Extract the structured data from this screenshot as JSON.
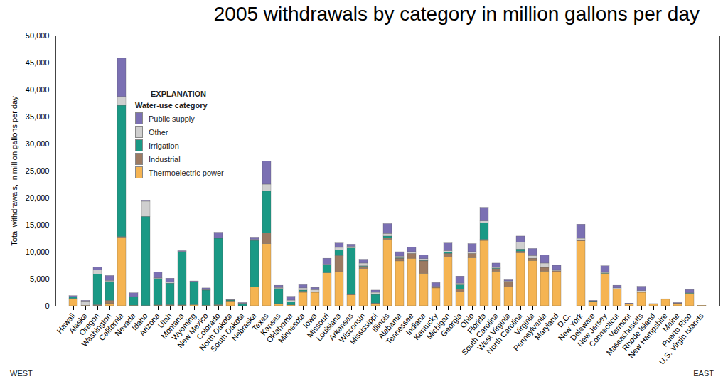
{
  "chart_data": {
    "type": "bar",
    "title": "2005 withdrawals by category in million gallons per day",
    "y_label": "Total withdrawals, in million gallons per day",
    "legend_title": "EXPLANATION",
    "legend_subtitle": "Water-use category",
    "annotations": [
      "WEST",
      "EAST"
    ],
    "stacked": true,
    "legend": "upper left",
    "grid": false,
    "ylim": [
      0,
      50000
    ],
    "yticks": [
      0,
      {
        "value": 5000,
        "label": "5,000"
      },
      {
        "value": 10000,
        "label": "10,000"
      },
      {
        "value": 15000,
        "label": "15,000"
      },
      {
        "value": 20000,
        "label": "20,000"
      },
      {
        "value": 25000,
        "label": "25,000"
      },
      {
        "value": 30000,
        "label": "30,000"
      },
      {
        "value": 35000,
        "label": "35,000"
      },
      {
        "value": 40000,
        "label": "40,000"
      },
      {
        "value": 45000,
        "label": "45,000"
      },
      {
        "value": 50000,
        "label": "50,000"
      }
    ],
    "categories": [
      "Hawaii",
      "Alaska",
      "Oregon",
      "Washington",
      "California",
      "Nevada",
      "Idaho",
      "Arizona",
      "Utah",
      "Montana",
      "Wyoming",
      "New Mexico",
      "Colorado",
      "North Dakota",
      "South Dakota",
      "Nebraska",
      "Texas",
      "Kansas",
      "Oklahoma",
      "Minnesota",
      "Iowa",
      "Missouri",
      "Louisiana",
      "Arkansas",
      "Wisconsin",
      "Mississippi",
      "Illinois",
      "Alabama",
      "Tennessee",
      "Indiana",
      "Kentucky",
      "Michigan",
      "Georgia",
      "Ohio",
      "Florida",
      "South Carolina",
      "West Virginia",
      "North Carolina",
      "Virginia",
      "Pennsylvania",
      "Maryland",
      "D.C.",
      "New York",
      "Delaware",
      "New Jersey",
      "Connecticut",
      "Vermont",
      "Massachusetts",
      "Rhode Island",
      "New Hampshire",
      "Maine",
      "Puerto Rico",
      "U.S. Virgin Islands"
    ],
    "series": [
      {
        "name": "Thermoelectric power",
        "color": "#f5b452",
        "values": [
          1300,
          100,
          50,
          400,
          12700,
          100,
          0,
          100,
          100,
          100,
          200,
          100,
          100,
          900,
          0,
          3500,
          11500,
          400,
          150,
          2500,
          2500,
          6100,
          6300,
          2000,
          6900,
          300,
          12300,
          8300,
          8800,
          6000,
          3300,
          9000,
          2600,
          8900,
          12100,
          6400,
          3500,
          9800,
          8400,
          6400,
          6300,
          0,
          12000,
          800,
          6000,
          3100,
          400,
          2500,
          300,
          1200,
          300,
          2300,
          100
        ]
      },
      {
        "name": "Industrial",
        "color": "#9c7a62",
        "values": [
          50,
          0,
          150,
          600,
          100,
          0,
          50,
          50,
          100,
          50,
          0,
          0,
          100,
          0,
          0,
          0,
          2000,
          0,
          0,
          200,
          100,
          0,
          3000,
          100,
          400,
          200,
          300,
          500,
          900,
          2300,
          200,
          700,
          500,
          800,
          200,
          500,
          1000,
          300,
          400,
          700,
          200,
          0,
          200,
          0,
          0,
          0,
          0,
          0,
          0,
          0,
          200,
          0,
          0
        ]
      },
      {
        "name": "Irrigation",
        "color": "#1a9985",
        "values": [
          250,
          0,
          5700,
          3500,
          24300,
          1500,
          16500,
          4900,
          4000,
          9800,
          4200,
          2800,
          12300,
          150,
          400,
          8600,
          7700,
          2800,
          600,
          200,
          0,
          1500,
          1000,
          8600,
          100,
          1600,
          300,
          100,
          0,
          100,
          0,
          200,
          800,
          0,
          3000,
          100,
          0,
          400,
          0,
          0,
          0,
          0,
          0,
          100,
          100,
          0,
          0,
          100,
          0,
          0,
          0,
          100,
          0
        ]
      },
      {
        "name": "Other",
        "color": "#cfcfcf",
        "values": [
          20,
          800,
          700,
          200,
          1600,
          100,
          2800,
          100,
          200,
          100,
          100,
          100,
          100,
          100,
          100,
          200,
          1300,
          200,
          300,
          400,
          400,
          100,
          500,
          300,
          500,
          400,
          500,
          300,
          300,
          300,
          100,
          300,
          300,
          300,
          400,
          200,
          100,
          1300,
          500,
          800,
          200,
          0,
          300,
          0,
          200,
          200,
          0,
          200,
          0,
          0,
          0,
          0,
          0
        ]
      },
      {
        "name": "Public supply",
        "color": "#7b70b3",
        "values": [
          250,
          100,
          600,
          900,
          7100,
          700,
          200,
          1100,
          700,
          150,
          100,
          300,
          1000,
          100,
          100,
          400,
          4300,
          400,
          700,
          600,
          400,
          1100,
          800,
          400,
          700,
          400,
          1800,
          800,
          900,
          700,
          700,
          1400,
          1300,
          1500,
          2500,
          700,
          200,
          1100,
          1300,
          1500,
          800,
          0,
          2600,
          100,
          1100,
          500,
          100,
          800,
          100,
          100,
          100,
          600,
          0
        ]
      }
    ]
  }
}
